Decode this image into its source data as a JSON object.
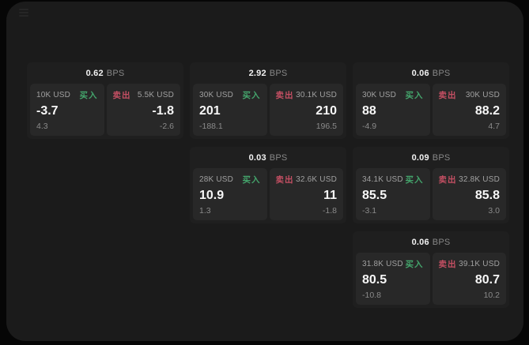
{
  "theme": {
    "outer_bg": "#060606",
    "panel_bg": "#1b1b1b",
    "card_bg": "#1f1f1f",
    "tile_bg": "#282828",
    "buy_color": "#44a56c",
    "sell_color": "#c44f63",
    "value_color": "#f7f7f7",
    "muted_color": "#8a8a8a"
  },
  "labels": {
    "bps": "BPS",
    "buy": "买入",
    "sell": "卖出"
  },
  "cards": [
    {
      "row": 1,
      "col": 1,
      "bps": "0.62",
      "buy": {
        "notional": "10K USD",
        "price": "-3.7",
        "change": "4.3"
      },
      "sell": {
        "notional": "5.5K USD",
        "price": "-1.8",
        "change": "-2.6"
      }
    },
    {
      "row": 1,
      "col": 2,
      "bps": "2.92",
      "buy": {
        "notional": "30K USD",
        "price": "201",
        "change": "-188.1"
      },
      "sell": {
        "notional": "30.1K USD",
        "price": "210",
        "change": "196.5"
      }
    },
    {
      "row": 1,
      "col": 3,
      "bps": "0.06",
      "buy": {
        "notional": "30K USD",
        "price": "88",
        "change": "-4.9"
      },
      "sell": {
        "notional": "30K USD",
        "price": "88.2",
        "change": "4.7"
      }
    },
    {
      "row": 2,
      "col": 2,
      "bps": "0.03",
      "buy": {
        "notional": "28K USD",
        "price": "10.9",
        "change": "1.3"
      },
      "sell": {
        "notional": "32.6K USD",
        "price": "11",
        "change": "-1.8"
      }
    },
    {
      "row": 2,
      "col": 3,
      "bps": "0.09",
      "buy": {
        "notional": "34.1K USD",
        "price": "85.5",
        "change": "-3.1"
      },
      "sell": {
        "notional": "32.8K USD",
        "price": "85.8",
        "change": "3.0"
      }
    },
    {
      "row": 3,
      "col": 3,
      "bps": "0.06",
      "buy": {
        "notional": "31.8K USD",
        "price": "80.5",
        "change": "-10.8"
      },
      "sell": {
        "notional": "39.1K USD",
        "price": "80.7",
        "change": "10.2"
      }
    }
  ]
}
